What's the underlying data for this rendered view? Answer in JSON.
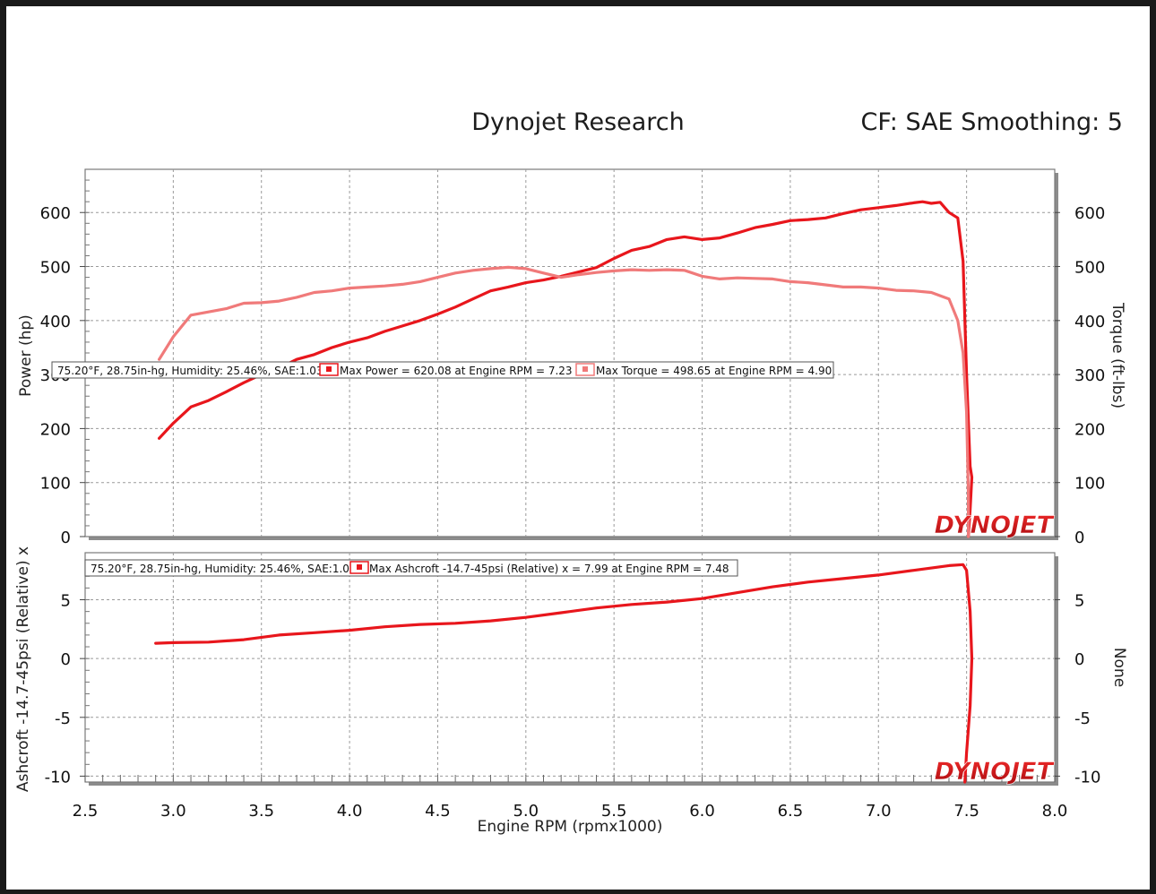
{
  "header": {
    "title": "Dynojet Research",
    "settings": "CF: SAE Smoothing: 5"
  },
  "colors": {
    "power": "#e8161c",
    "torque": "#f07a7a",
    "boost": "#e8161c",
    "logo": "#d9141a"
  },
  "logo_text": "DYNOJET",
  "chart_data": [
    {
      "type": "line",
      "name": "power-torque",
      "xlabel": "",
      "ylabel": "Power (hp)",
      "y2label": "Torque (ft-lbs)",
      "xlim": [
        2.5,
        8.0
      ],
      "ylim": [
        0,
        680
      ],
      "y2lim": [
        0,
        680
      ],
      "yticks": [
        "0",
        "100",
        "200",
        "300",
        "400",
        "500",
        "600"
      ],
      "y2ticks": [
        "0",
        "100",
        "200",
        "300",
        "400",
        "500",
        "600"
      ],
      "legend": {
        "conditions": "75.20°F, 28.75in-hg, Humidity: 25.46%, SAE:1.03",
        "power": "Max Power = 620.08 at Engine RPM = 7.23",
        "torque": "Max Torque = 498.65 at Engine RPM = 4.90"
      },
      "series": [
        {
          "name": "Power",
          "axis": "left",
          "points": [
            [
              2.92,
              182
            ],
            [
              3.0,
              210
            ],
            [
              3.1,
              240
            ],
            [
              3.2,
              252
            ],
            [
              3.3,
              268
            ],
            [
              3.4,
              285
            ],
            [
              3.5,
              300
            ],
            [
              3.6,
              312
            ],
            [
              3.7,
              328
            ],
            [
              3.8,
              337
            ],
            [
              3.9,
              350
            ],
            [
              4.0,
              360
            ],
            [
              4.1,
              368
            ],
            [
              4.2,
              380
            ],
            [
              4.3,
              390
            ],
            [
              4.4,
              400
            ],
            [
              4.5,
              412
            ],
            [
              4.6,
              425
            ],
            [
              4.7,
              440
            ],
            [
              4.8,
              455
            ],
            [
              4.9,
              462
            ],
            [
              5.0,
              470
            ],
            [
              5.1,
              475
            ],
            [
              5.2,
              482
            ],
            [
              5.3,
              490
            ],
            [
              5.4,
              498
            ],
            [
              5.5,
              515
            ],
            [
              5.6,
              530
            ],
            [
              5.7,
              537
            ],
            [
              5.8,
              550
            ],
            [
              5.9,
              555
            ],
            [
              6.0,
              550
            ],
            [
              6.1,
              553
            ],
            [
              6.2,
              562
            ],
            [
              6.3,
              572
            ],
            [
              6.4,
              578
            ],
            [
              6.5,
              585
            ],
            [
              6.6,
              587
            ],
            [
              6.7,
              590
            ],
            [
              6.8,
              598
            ],
            [
              6.9,
              605
            ],
            [
              7.0,
              609
            ],
            [
              7.1,
              613
            ],
            [
              7.2,
              618
            ],
            [
              7.25,
              620
            ],
            [
              7.3,
              617
            ],
            [
              7.35,
              619
            ],
            [
              7.4,
              600
            ],
            [
              7.45,
              590
            ],
            [
              7.48,
              510
            ],
            [
              7.5,
              300
            ],
            [
              7.52,
              130
            ],
            [
              7.53,
              110
            ],
            [
              7.52,
              50
            ],
            [
              7.51,
              0
            ]
          ]
        },
        {
          "name": "Torque",
          "axis": "right",
          "points": [
            [
              2.92,
              328
            ],
            [
              3.0,
              370
            ],
            [
              3.1,
              410
            ],
            [
              3.2,
              416
            ],
            [
              3.3,
              422
            ],
            [
              3.4,
              432
            ],
            [
              3.5,
              433
            ],
            [
              3.6,
              436
            ],
            [
              3.7,
              443
            ],
            [
              3.8,
              452
            ],
            [
              3.9,
              455
            ],
            [
              4.0,
              460
            ],
            [
              4.1,
              462
            ],
            [
              4.2,
              464
            ],
            [
              4.3,
              467
            ],
            [
              4.4,
              472
            ],
            [
              4.5,
              480
            ],
            [
              4.6,
              488
            ],
            [
              4.7,
              493
            ],
            [
              4.8,
              496
            ],
            [
              4.9,
              498.6
            ],
            [
              5.0,
              496
            ],
            [
              5.1,
              488
            ],
            [
              5.2,
              480
            ],
            [
              5.3,
              485
            ],
            [
              5.4,
              489
            ],
            [
              5.5,
              492
            ],
            [
              5.6,
              494
            ],
            [
              5.7,
              493
            ],
            [
              5.8,
              494
            ],
            [
              5.9,
              493
            ],
            [
              6.0,
              482
            ],
            [
              6.1,
              477
            ],
            [
              6.2,
              479
            ],
            [
              6.3,
              478
            ],
            [
              6.4,
              477
            ],
            [
              6.5,
              472
            ],
            [
              6.6,
              470
            ],
            [
              6.7,
              466
            ],
            [
              6.8,
              462
            ],
            [
              6.9,
              462
            ],
            [
              7.0,
              460
            ],
            [
              7.1,
              456
            ],
            [
              7.2,
              455
            ],
            [
              7.3,
              452
            ],
            [
              7.35,
              446
            ],
            [
              7.4,
              440
            ],
            [
              7.45,
              400
            ],
            [
              7.48,
              340
            ],
            [
              7.5,
              230
            ],
            [
              7.51,
              80
            ],
            [
              7.51,
              0
            ]
          ]
        }
      ]
    },
    {
      "type": "line",
      "name": "ashcroft",
      "xlabel": "Engine RPM (rpmx1000)",
      "ylabel": "Ashcroft -14.7-45psi (Relative) x",
      "y2label": "None",
      "xlim": [
        2.5,
        8.0
      ],
      "ylim": [
        -10.5,
        9
      ],
      "xticks": [
        "2.5",
        "3.0",
        "3.5",
        "4.0",
        "4.5",
        "5.0",
        "5.5",
        "6.0",
        "6.5",
        "7.0",
        "7.5",
        "8.0"
      ],
      "yticks": [
        "-10",
        "-5",
        "0",
        "5"
      ],
      "y2ticks": [
        "-10",
        "-5",
        "0",
        "5"
      ],
      "legend": {
        "conditions": "75.20°F, 28.75in-hg, Humidity: 25.46%, SAE:1.03",
        "boost": "Max Ashcroft -14.7-45psi (Relative) x = 7.99 at Engine RPM = 7.48"
      },
      "series": [
        {
          "name": "Ashcroft",
          "axis": "left",
          "points": [
            [
              2.9,
              1.3
            ],
            [
              3.0,
              1.35
            ],
            [
              3.2,
              1.4
            ],
            [
              3.4,
              1.6
            ],
            [
              3.6,
              2.0
            ],
            [
              3.8,
              2.2
            ],
            [
              4.0,
              2.4
            ],
            [
              4.2,
              2.7
            ],
            [
              4.4,
              2.9
            ],
            [
              4.6,
              3.0
            ],
            [
              4.8,
              3.2
            ],
            [
              5.0,
              3.5
            ],
            [
              5.2,
              3.9
            ],
            [
              5.4,
              4.3
            ],
            [
              5.6,
              4.6
            ],
            [
              5.8,
              4.8
            ],
            [
              6.0,
              5.1
            ],
            [
              6.2,
              5.6
            ],
            [
              6.4,
              6.1
            ],
            [
              6.6,
              6.5
            ],
            [
              6.8,
              6.8
            ],
            [
              7.0,
              7.1
            ],
            [
              7.2,
              7.5
            ],
            [
              7.4,
              7.9
            ],
            [
              7.48,
              7.99
            ],
            [
              7.5,
              7.5
            ],
            [
              7.52,
              4
            ],
            [
              7.53,
              0
            ],
            [
              7.52,
              -4
            ],
            [
              7.5,
              -8
            ],
            [
              7.49,
              -10.5
            ]
          ]
        }
      ]
    }
  ]
}
